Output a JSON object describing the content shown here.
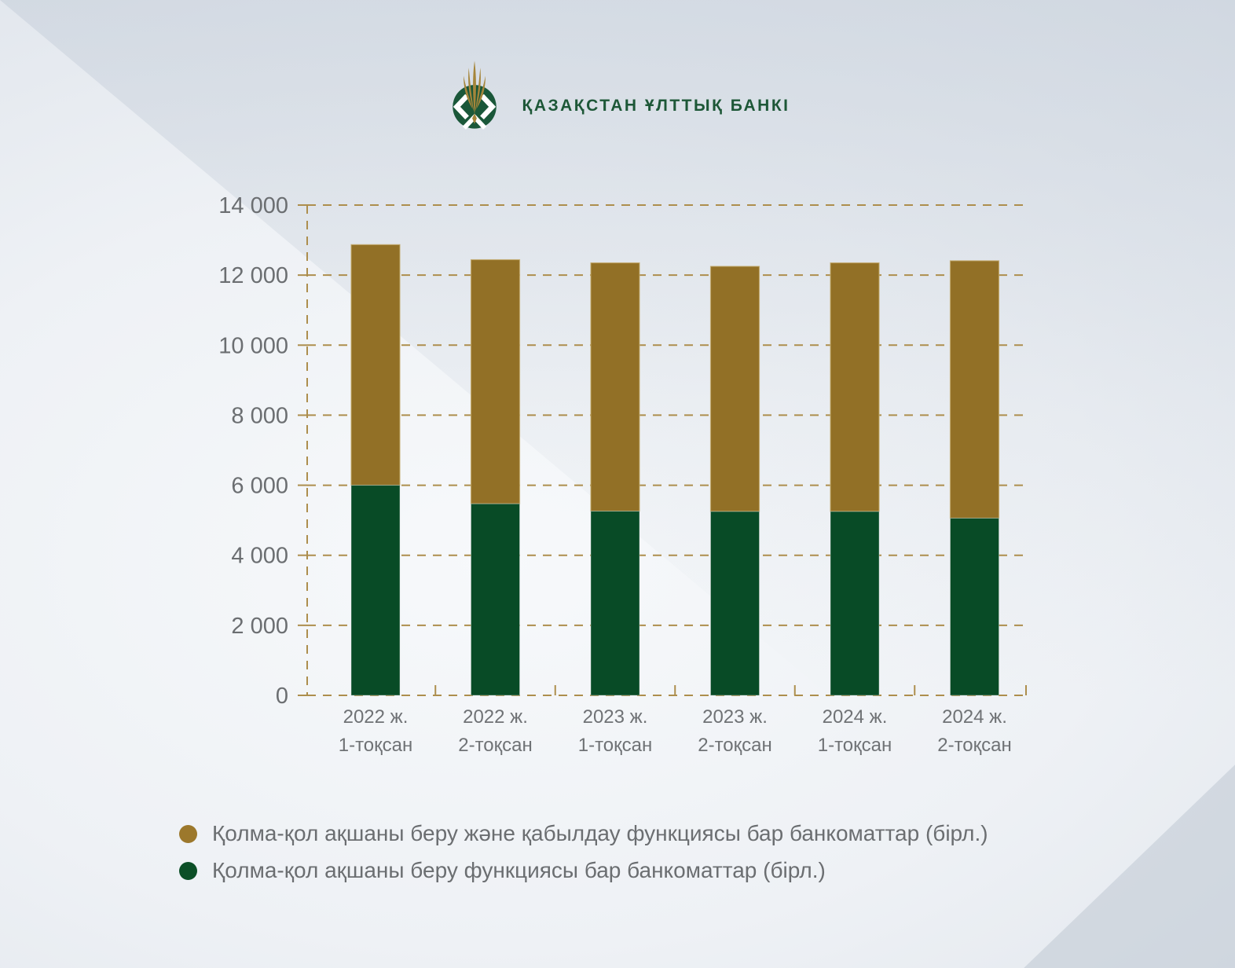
{
  "header": {
    "title": "ҚАЗАҚСТАН ҰЛТТЫҚ БАНКІ",
    "logo": "national-bank-of-kazakhstan-emblem",
    "brand_green": "#1A5739",
    "brand_gold": "#A5853A"
  },
  "chart_data": {
    "type": "bar",
    "stacked": true,
    "title": "",
    "xlabel": "",
    "ylabel": "",
    "categories": [
      {
        "line1": "2022 ж.",
        "line2": "1-тоқсан"
      },
      {
        "line1": "2022 ж.",
        "line2": "2-тоқсан"
      },
      {
        "line1": "2023 ж.",
        "line2": "1-тоқсан"
      },
      {
        "line1": "2023 ж.",
        "line2": "2-тоқсан"
      },
      {
        "line1": "2024 ж.",
        "line2": "1-тоқсан"
      },
      {
        "line1": "2024 ж.",
        "line2": "2-тоқсан"
      }
    ],
    "series": [
      {
        "name": "Қолма-қол ақшаны беру функциясы бар банкоматтар (бірл.)",
        "stack": "bottom",
        "color": "#084B26",
        "values": [
          6000,
          5470,
          5260,
          5250,
          5250,
          5060
        ]
      },
      {
        "name": "Қолма-қол ақшаны беру және қабылдау функциясы бар банкоматтар (бірл.)",
        "stack": "top",
        "color": "#927026",
        "values": [
          6870,
          6970,
          7090,
          7000,
          7100,
          7350
        ]
      }
    ],
    "stack_totals": [
      12870,
      12440,
      12350,
      12250,
      12350,
      12410
    ],
    "ylim": [
      0,
      14000
    ],
    "ytick_step": 2000,
    "ytick_labels": [
      "0",
      "2 000",
      "4 000",
      "6 000",
      "8 000",
      "10 000",
      "12 000",
      "14 000"
    ],
    "grid": "dashed-horizontal",
    "grid_color": "#AD8E4D",
    "legend_position": "bottom-left",
    "legend": [
      {
        "label": "Қолма-қол ақшаны беру және қабылдау функциясы бар банкоматтар (бірл.)",
        "color": "#9C782C"
      },
      {
        "label": "Қолма-қол ақшаны беру функциясы бар банкоматтар (бірл.)",
        "color": "#0B4F27"
      }
    ]
  },
  "colors": {
    "text_gray": "#6B6E71",
    "background_light": "#EEF1F5",
    "background_dark": "#D2D9E1"
  }
}
